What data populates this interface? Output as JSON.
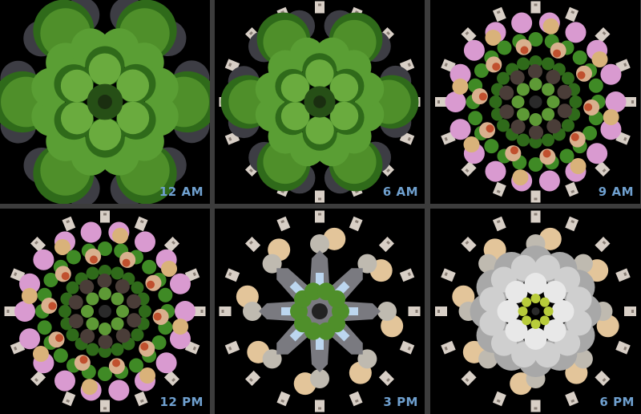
{
  "panels": [
    {
      "time": "12 AM",
      "stage": "trees"
    },
    {
      "time": "6 AM",
      "stage": "trees-signs"
    },
    {
      "time": "9 AM",
      "stage": "rings"
    },
    {
      "time": "12 PM",
      "stage": "rings"
    },
    {
      "time": "3 PM",
      "stage": "machines"
    },
    {
      "time": "6 PM",
      "stage": "rubble"
    }
  ],
  "colors": {
    "background": "#000000",
    "border": "#3c3c3c",
    "label": "#6fa0cf",
    "foliage": "#4f8f2a",
    "foliage_dark": "#2f6a1a",
    "sign": "#d8cfc6",
    "pink": "#d99ad0",
    "tan": "#d9b27a"
  }
}
